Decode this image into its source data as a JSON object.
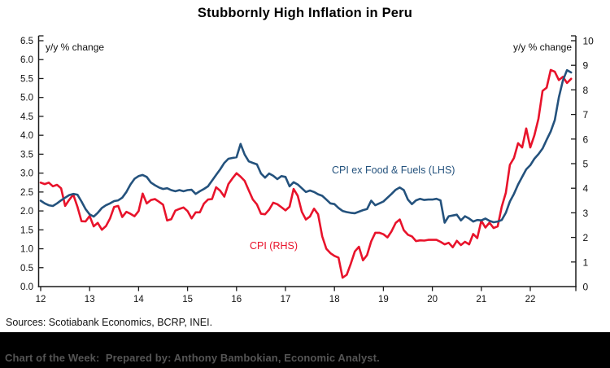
{
  "title": "Stubbornly High Inflation in Peru",
  "sources_note": "Sources: Scotiabank Economics, BCRP, INEI.",
  "footer": {
    "text": "Chart of the Week:  Prepared by: Anthony Bambokian, Economic Analyst.",
    "bg_color": "#000000",
    "text_color": "#545454"
  },
  "chart_data": {
    "type": "line",
    "title": "Stubbornly High Inflation in Peru",
    "frequency": "monthly",
    "x_start_label": "2012-01",
    "x_end_label": "2022-11",
    "grid": false,
    "legend_position": "inline-labels",
    "left_axis": {
      "label": "y/y % change",
      "min": 0,
      "max": 6.5,
      "step": 0.5,
      "tick_format": "one_decimal"
    },
    "right_axis": {
      "label": "y/y % change",
      "min": 0,
      "max": 10,
      "step": 1,
      "tick_format": "integer"
    },
    "x_axis": {
      "ticks": [
        "12",
        "13",
        "14",
        "15",
        "16",
        "17",
        "18",
        "19",
        "20",
        "21",
        "22"
      ]
    },
    "series": [
      {
        "name": "CPI ex Food & Fuels (LHS)",
        "axis": "left",
        "color": "#24527D",
        "values": [
          2.27,
          2.2,
          2.15,
          2.13,
          2.2,
          2.28,
          2.35,
          2.42,
          2.45,
          2.43,
          2.25,
          2.05,
          1.91,
          1.85,
          1.95,
          2.08,
          2.15,
          2.2,
          2.26,
          2.28,
          2.35,
          2.5,
          2.7,
          2.85,
          2.92,
          2.95,
          2.9,
          2.75,
          2.68,
          2.62,
          2.58,
          2.6,
          2.55,
          2.52,
          2.55,
          2.52,
          2.55,
          2.56,
          2.45,
          2.52,
          2.58,
          2.65,
          2.8,
          2.95,
          3.1,
          3.27,
          3.38,
          3.4,
          3.42,
          3.77,
          3.49,
          3.31,
          3.27,
          3.23,
          2.99,
          2.88,
          2.99,
          2.93,
          2.84,
          2.92,
          2.9,
          2.65,
          2.76,
          2.7,
          2.6,
          2.5,
          2.54,
          2.5,
          2.44,
          2.4,
          2.3,
          2.2,
          2.18,
          2.08,
          2.0,
          1.97,
          1.95,
          1.94,
          1.98,
          2.02,
          2.05,
          2.27,
          2.15,
          2.2,
          2.25,
          2.35,
          2.45,
          2.56,
          2.62,
          2.55,
          2.3,
          2.18,
          2.28,
          2.32,
          2.29,
          2.3,
          2.3,
          2.32,
          2.28,
          1.69,
          1.86,
          1.88,
          1.9,
          1.75,
          1.86,
          1.8,
          1.72,
          1.76,
          1.75,
          1.8,
          1.74,
          1.7,
          1.72,
          1.76,
          1.95,
          2.25,
          2.45,
          2.7,
          2.9,
          3.1,
          3.21,
          3.38,
          3.5,
          3.65,
          3.88,
          4.1,
          4.4,
          5.0,
          5.45,
          5.72,
          5.66
        ]
      },
      {
        "name": "CPI (RHS)",
        "axis": "right",
        "color": "#E8132B",
        "values": [
          4.23,
          4.17,
          4.23,
          4.08,
          4.14,
          4.0,
          3.28,
          3.53,
          3.74,
          3.25,
          2.66,
          2.65,
          2.87,
          2.45,
          2.59,
          2.31,
          2.46,
          2.77,
          3.24,
          3.28,
          2.83,
          3.04,
          2.96,
          2.86,
          3.07,
          3.78,
          3.38,
          3.52,
          3.56,
          3.45,
          3.33,
          2.69,
          2.74,
          3.09,
          3.16,
          3.22,
          3.07,
          2.77,
          3.02,
          3.02,
          3.37,
          3.54,
          3.56,
          4.04,
          3.9,
          3.66,
          4.17,
          4.4,
          4.61,
          4.47,
          4.3,
          3.91,
          3.54,
          3.34,
          2.96,
          2.94,
          3.13,
          3.41,
          3.35,
          3.23,
          3.1,
          3.25,
          3.97,
          3.69,
          3.04,
          2.73,
          2.85,
          3.17,
          2.94,
          2.04,
          1.54,
          1.36,
          1.25,
          1.18,
          0.36,
          0.48,
          0.93,
          1.43,
          1.62,
          1.07,
          1.28,
          1.84,
          2.19,
          2.19,
          2.13,
          2.0,
          2.25,
          2.59,
          2.73,
          2.29,
          2.11,
          2.04,
          1.85,
          1.88,
          1.87,
          1.9,
          1.9,
          1.9,
          1.82,
          1.72,
          1.78,
          1.6,
          1.86,
          1.69,
          1.82,
          1.72,
          2.14,
          1.97,
          2.68,
          2.4,
          2.6,
          2.38,
          2.45,
          3.25,
          3.81,
          4.95,
          5.23,
          5.83,
          5.66,
          6.43,
          5.66,
          6.15,
          6.82,
          7.96,
          8.09,
          8.81,
          8.74,
          8.4,
          8.53,
          8.28,
          8.45
        ]
      }
    ]
  }
}
